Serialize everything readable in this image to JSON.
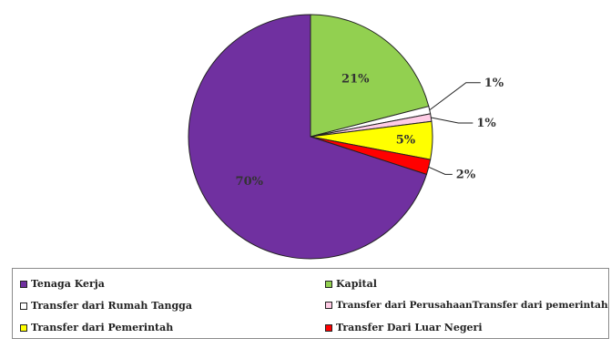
{
  "chart_data": {
    "type": "pie",
    "title": "",
    "slices": [
      {
        "label": "Tenaga Kerja",
        "value": 70,
        "value_label": "70%",
        "color": "#7030A0"
      },
      {
        "label": "Kapital",
        "value": 21,
        "value_label": "21%",
        "color": "#92D050"
      },
      {
        "label": "Transfer dari Rumah Tangga",
        "value": 1,
        "value_label": "1%",
        "color": "#FFFFFF"
      },
      {
        "label": "Transfer dari PerusahaanTransfer dari pemerintah",
        "value": 1,
        "value_label": "1%",
        "color": "#FFCCE5"
      },
      {
        "label": "Transfer dari Pemerintah",
        "value": 5,
        "value_label": "5%",
        "color": "#FFFF00"
      },
      {
        "label": "Transfer Dari Luar Negeri",
        "value": 2,
        "value_label": "2%",
        "color": "#FF0000"
      }
    ],
    "legend": {
      "position": "bottom",
      "columns": 2
    }
  }
}
